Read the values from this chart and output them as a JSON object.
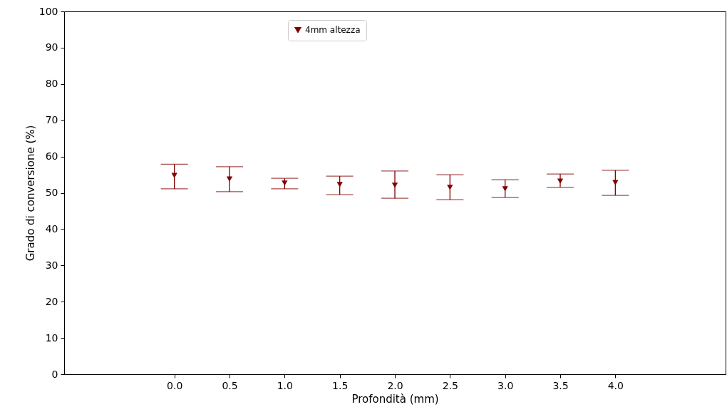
{
  "chart_data": {
    "type": "scatter",
    "xlabel": "Profondità (mm)",
    "ylabel": "Grado di conversione (%)",
    "x": [
      0.0,
      0.5,
      1.0,
      1.5,
      2.0,
      2.5,
      3.0,
      3.5,
      4.0
    ],
    "series": [
      {
        "name": "4mm altezza",
        "color": "#800000",
        "values": [
          54.8,
          53.8,
          52.7,
          52.3,
          52.1,
          51.5,
          51.1,
          53.2,
          52.8
        ],
        "errors": [
          [
            51.1,
            57.9
          ],
          [
            50.3,
            57.2
          ],
          [
            51.1,
            54.0
          ],
          [
            49.5,
            54.6
          ],
          [
            48.5,
            56.0
          ],
          [
            48.1,
            55.0
          ],
          [
            48.7,
            53.6
          ],
          [
            51.5,
            55.2
          ],
          [
            49.3,
            56.2
          ]
        ]
      }
    ],
    "xlim": [
      -1.0,
      5.0
    ],
    "xticks": [
      {
        "value": 0,
        "label": "0.0"
      },
      {
        "value": 0.5,
        "label": "0.5"
      },
      {
        "value": 1,
        "label": "1.0"
      },
      {
        "value": 1.5,
        "label": "1.5"
      },
      {
        "value": 2,
        "label": "2.0"
      },
      {
        "value": 2.5,
        "label": "2.5"
      },
      {
        "value": 3,
        "label": "3.0"
      },
      {
        "value": 3.5,
        "label": "3.5"
      },
      {
        "value": 4,
        "label": "4.0"
      }
    ],
    "ylim": [
      0,
      100
    ],
    "yticks": [
      0,
      10,
      20,
      30,
      40,
      50,
      60,
      70,
      80,
      90,
      100
    ],
    "grid": false,
    "legend": "top",
    "marker": "triangle"
  }
}
